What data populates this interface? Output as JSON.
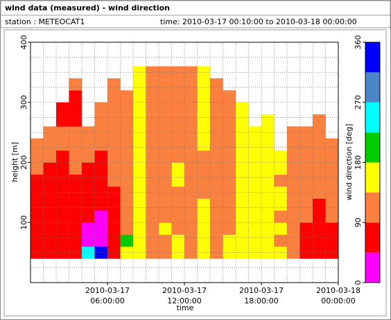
{
  "chart_data": {
    "type": "heatmap",
    "title": "wind data (measured) - wind direction",
    "station": "station : METEOCAT1",
    "period": "time: 2010-03-17 00:10:00 to 2010-03-18 00:00:00",
    "xlabel": "time",
    "ylabel": "height [m]",
    "xlim": [
      "2010-03-17 00:00:00",
      "2010-03-18 00:00:00"
    ],
    "xticks": [
      {
        "value": "2010-03-17 06:00:00",
        "label": [
          "2010-03-17",
          "06:00:00"
        ]
      },
      {
        "value": "2010-03-17 12:00:00",
        "label": [
          "2010-03-17",
          "12:00:00"
        ]
      },
      {
        "value": "2010-03-17 18:00:00",
        "label": [
          "2010-03-17",
          "18:00:00"
        ]
      },
      {
        "value": "2010-03-18 00:00:00",
        "label": [
          "2010-03-18",
          "00:00:00"
        ]
      }
    ],
    "xminorticks": [
      "2010-03-17 01:00:00",
      "2010-03-17 02:00:00",
      "2010-03-17 03:00:00",
      "2010-03-17 04:00:00",
      "2010-03-17 05:00:00",
      "2010-03-17 07:00:00",
      "2010-03-17 08:00:00",
      "2010-03-17 09:00:00",
      "2010-03-17 10:00:00",
      "2010-03-17 11:00:00",
      "2010-03-17 13:00:00",
      "2010-03-17 14:00:00",
      "2010-03-17 15:00:00",
      "2010-03-17 16:00:00",
      "2010-03-17 17:00:00",
      "2010-03-17 19:00:00",
      "2010-03-17 20:00:00",
      "2010-03-17 21:00:00",
      "2010-03-17 22:00:00",
      "2010-03-17 23:00:00"
    ],
    "ylim": [
      0,
      400
    ],
    "yticks": [
      100,
      200,
      300,
      400
    ],
    "yminorticks": [
      25,
      50,
      75,
      125,
      150,
      175,
      225,
      250,
      275,
      325,
      350,
      375
    ],
    "grid": true,
    "x": [
      "2010-03-17 00:30:00",
      "2010-03-17 01:30:00",
      "2010-03-17 02:30:00",
      "2010-03-17 03:30:00",
      "2010-03-17 04:30:00",
      "2010-03-17 05:30:00",
      "2010-03-17 06:30:00",
      "2010-03-17 07:30:00",
      "2010-03-17 08:30:00",
      "2010-03-17 09:30:00",
      "2010-03-17 10:30:00",
      "2010-03-17 11:30:00",
      "2010-03-17 12:30:00",
      "2010-03-17 13:30:00",
      "2010-03-17 14:30:00",
      "2010-03-17 15:30:00",
      "2010-03-17 16:30:00",
      "2010-03-17 17:30:00",
      "2010-03-17 18:30:00",
      "2010-03-17 19:30:00",
      "2010-03-17 20:30:00",
      "2010-03-17 21:30:00",
      "2010-03-17 22:30:00",
      "2010-03-17 23:30:00"
    ],
    "y": [
      50,
      70,
      90,
      110,
      130,
      150,
      170,
      190,
      210,
      230,
      250,
      270,
      290,
      310,
      330,
      350
    ],
    "values": [
      [
        60,
        60,
        60,
        60,
        60,
        60,
        60,
        110,
        110,
        110,
        null,
        null,
        null,
        null,
        null,
        null
      ],
      [
        60,
        60,
        60,
        60,
        60,
        60,
        60,
        60,
        110,
        110,
        110,
        null,
        null,
        null,
        null,
        null
      ],
      [
        60,
        60,
        60,
        60,
        60,
        60,
        60,
        60,
        60,
        110,
        110,
        60,
        60,
        null,
        null,
        null
      ],
      [
        60,
        60,
        60,
        60,
        60,
        60,
        60,
        110,
        110,
        110,
        110,
        60,
        60,
        60,
        110,
        null
      ],
      [
        240,
        30,
        30,
        60,
        60,
        60,
        60,
        60,
        110,
        110,
        110,
        null,
        null,
        null,
        null,
        null
      ],
      [
        330,
        30,
        30,
        30,
        60,
        60,
        60,
        60,
        60,
        110,
        110,
        110,
        110,
        null,
        null,
        null
      ],
      [
        60,
        60,
        60,
        60,
        60,
        60,
        110,
        110,
        110,
        110,
        110,
        110,
        110,
        110,
        110,
        null
      ],
      [
        160,
        200,
        110,
        110,
        110,
        110,
        110,
        110,
        110,
        110,
        110,
        110,
        110,
        110,
        null,
        null
      ],
      [
        160,
        160,
        160,
        160,
        160,
        160,
        160,
        160,
        160,
        160,
        160,
        160,
        160,
        160,
        160,
        160
      ],
      [
        110,
        110,
        110,
        110,
        110,
        110,
        110,
        110,
        110,
        110,
        110,
        110,
        110,
        110,
        110,
        110
      ],
      [
        110,
        110,
        160,
        110,
        110,
        110,
        110,
        110,
        110,
        110,
        110,
        110,
        110,
        110,
        110,
        110
      ],
      [
        160,
        160,
        110,
        110,
        110,
        110,
        160,
        160,
        110,
        110,
        110,
        110,
        110,
        110,
        110,
        110
      ],
      [
        110,
        110,
        110,
        110,
        110,
        110,
        110,
        110,
        110,
        110,
        110,
        110,
        110,
        110,
        110,
        110
      ],
      [
        160,
        160,
        160,
        160,
        160,
        110,
        110,
        110,
        110,
        160,
        160,
        160,
        160,
        160,
        160,
        160
      ],
      [
        110,
        110,
        110,
        110,
        110,
        110,
        110,
        110,
        110,
        110,
        110,
        110,
        110,
        110,
        110,
        null
      ],
      [
        160,
        160,
        110,
        110,
        110,
        110,
        110,
        110,
        110,
        110,
        110,
        110,
        110,
        110,
        null,
        null
      ],
      [
        160,
        160,
        160,
        160,
        160,
        160,
        160,
        160,
        160,
        160,
        160,
        160,
        160,
        null,
        null,
        null
      ],
      [
        160,
        160,
        160,
        160,
        160,
        160,
        160,
        160,
        160,
        160,
        160,
        null,
        null,
        null,
        null,
        null
      ],
      [
        160,
        160,
        160,
        160,
        160,
        160,
        160,
        160,
        160,
        160,
        160,
        160,
        null,
        null,
        null,
        null
      ],
      [
        160,
        110,
        160,
        110,
        160,
        160,
        110,
        160,
        160,
        null,
        null,
        null,
        null,
        null,
        null,
        null
      ],
      [
        110,
        110,
        110,
        110,
        110,
        110,
        110,
        110,
        110,
        110,
        110,
        null,
        null,
        null,
        null,
        null
      ],
      [
        60,
        60,
        60,
        110,
        110,
        110,
        110,
        110,
        110,
        110,
        110,
        null,
        null,
        null,
        null,
        null
      ],
      [
        60,
        60,
        60,
        60,
        60,
        110,
        110,
        110,
        110,
        110,
        110,
        110,
        null,
        null,
        null,
        null
      ],
      [
        60,
        60,
        60,
        110,
        110,
        110,
        110,
        110,
        110,
        110,
        null,
        null,
        null,
        null,
        null,
        null
      ]
    ],
    "colorbar": {
      "label": "wind direction [deg]",
      "lim": [
        0,
        360
      ],
      "ticks": [
        0,
        90,
        180,
        270,
        360
      ],
      "bounds": [
        0,
        45,
        90,
        135,
        180,
        225,
        270,
        315,
        360
      ],
      "colors": [
        "#ff00ff",
        "#ff0000",
        "#fa8040",
        "#ffff00",
        "#00cc00",
        "#00ffff",
        "#4a86c8",
        "#0000ff"
      ]
    }
  }
}
